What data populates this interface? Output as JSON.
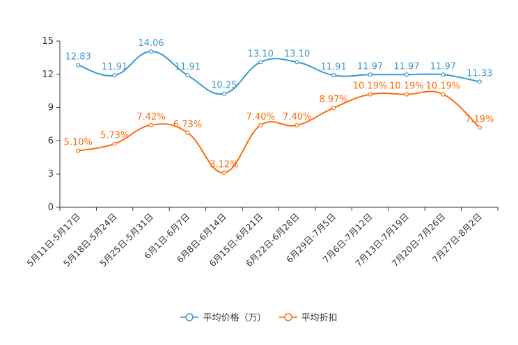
{
  "chart_data": {
    "type": "line",
    "categories": [
      "5月11日-5月17日",
      "5月18日-5月24日",
      "5月25日-5月31日",
      "6月1日-6月7日",
      "6月8日-6月14日",
      "6月15日-6月21日",
      "6月22日-6月28日",
      "6月29日-7月5日",
      "7月6日-7月12日",
      "7月13日-7月19日",
      "7月20日-7月26日",
      "7月27日-8月2日"
    ],
    "ylim": [
      0,
      15
    ],
    "yticks": [
      "0",
      "3",
      "6",
      "9",
      "12",
      "15"
    ],
    "smooth": true,
    "legend_position": "bottom",
    "series": [
      {
        "name": "平均价格（万）",
        "color": "#3a98d0",
        "values": [
          12.83,
          11.91,
          14.06,
          11.91,
          10.25,
          13.1,
          13.1,
          11.91,
          11.97,
          11.97,
          11.97,
          11.33
        ],
        "labels": [
          "12.83",
          "11.91",
          "14.06",
          "11.91",
          "10.25",
          "13.10",
          "13.10",
          "11.91",
          "11.97",
          "11.97",
          "11.97",
          "11.33"
        ]
      },
      {
        "name": "平均折扣",
        "color": "#ff6a0a",
        "values": [
          5.1,
          5.73,
          7.42,
          6.73,
          3.12,
          7.4,
          7.4,
          8.97,
          10.19,
          10.19,
          10.19,
          7.19
        ],
        "labels": [
          "5.10%",
          "5.73%",
          "7.42%",
          "6.73%",
          "3.12%",
          "7.40%",
          "7.40%",
          "8.97%",
          "10.19%",
          "10.19%",
          "10.19%",
          "7.19%"
        ]
      }
    ]
  }
}
